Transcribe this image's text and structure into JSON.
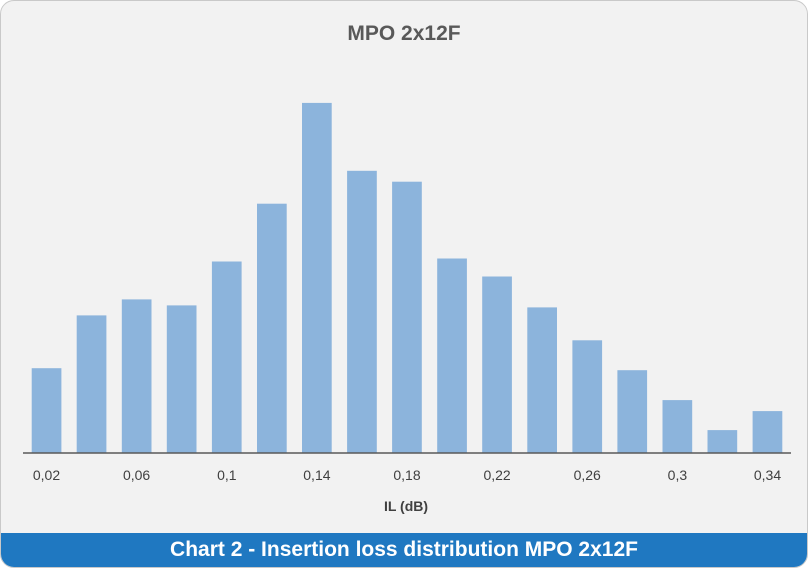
{
  "caption": "Chart 2 - Insertion loss distribution MPO 2x12F",
  "chart_data": {
    "type": "bar",
    "title": "MPO 2x12F",
    "xlabel": "IL (dB)",
    "ylabel": "",
    "categories": [
      "0,02",
      "0,04",
      "0,06",
      "0,08",
      "0,1",
      "0,12",
      "0,14",
      "0,16",
      "0,18",
      "0,2",
      "0,22",
      "0,24",
      "0,26",
      "0,28",
      "0,3",
      "0,32",
      "0,34"
    ],
    "tick_labels_shown": [
      "0,02",
      "",
      "0,06",
      "",
      "0,1",
      "",
      "0,14",
      "",
      "0,18",
      "",
      "0,22",
      "",
      "0,26",
      "",
      "0,3",
      "",
      "0,34"
    ],
    "values": [
      85,
      138,
      154,
      148,
      192,
      250,
      351,
      283,
      272,
      195,
      177,
      146,
      113,
      83,
      53,
      23,
      42
    ],
    "ylim": [
      0,
      370
    ],
    "bar_color": "#8cb4dc",
    "axis_color": "#595959",
    "grid": false,
    "legend": false
  }
}
